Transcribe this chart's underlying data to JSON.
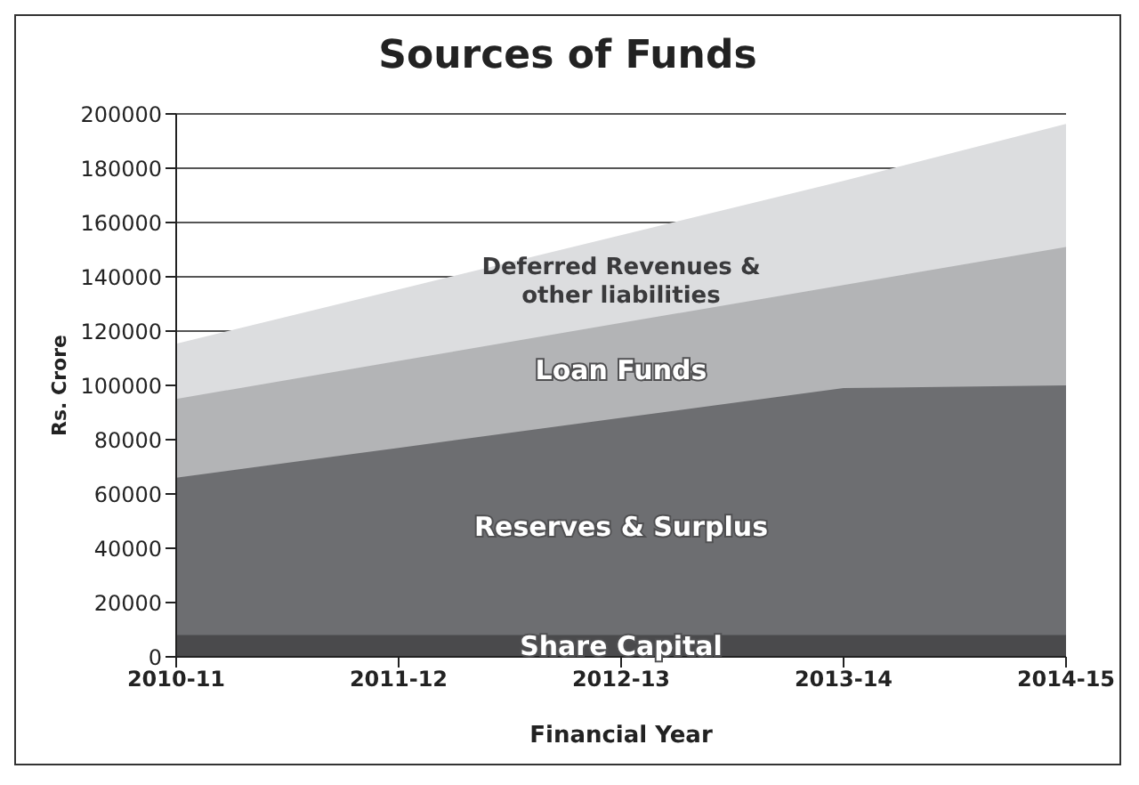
{
  "chart_data": {
    "type": "area",
    "title": "Sources of Funds",
    "xlabel": "Financial Year",
    "ylabel": "Rs. Crore",
    "stacked": true,
    "categories": [
      "2010-11",
      "2011-12",
      "2012-13",
      "2013-14",
      "2014-15"
    ],
    "series": [
      {
        "name": "Share Capital",
        "color": "#4a4a4c",
        "values": [
          8000,
          8000,
          8000,
          8000,
          8000
        ]
      },
      {
        "name": "Reserves & Surplus",
        "color": "#6d6e71",
        "values": [
          58000,
          69000,
          80000,
          91000,
          92000
        ]
      },
      {
        "name": "Loan Funds",
        "color": "#b3b4b6",
        "values": [
          29000,
          32000,
          35000,
          38000,
          51000
        ]
      },
      {
        "name": "Deferred Revenues & other liabilities",
        "color": "#dcdddf",
        "values": [
          20000,
          26000,
          32000,
          38000,
          45000
        ]
      }
    ],
    "ylim": [
      0,
      200000
    ],
    "yticks": [
      0,
      20000,
      40000,
      60000,
      80000,
      100000,
      120000,
      140000,
      160000,
      180000,
      200000
    ],
    "grid": "y",
    "legend": false
  }
}
